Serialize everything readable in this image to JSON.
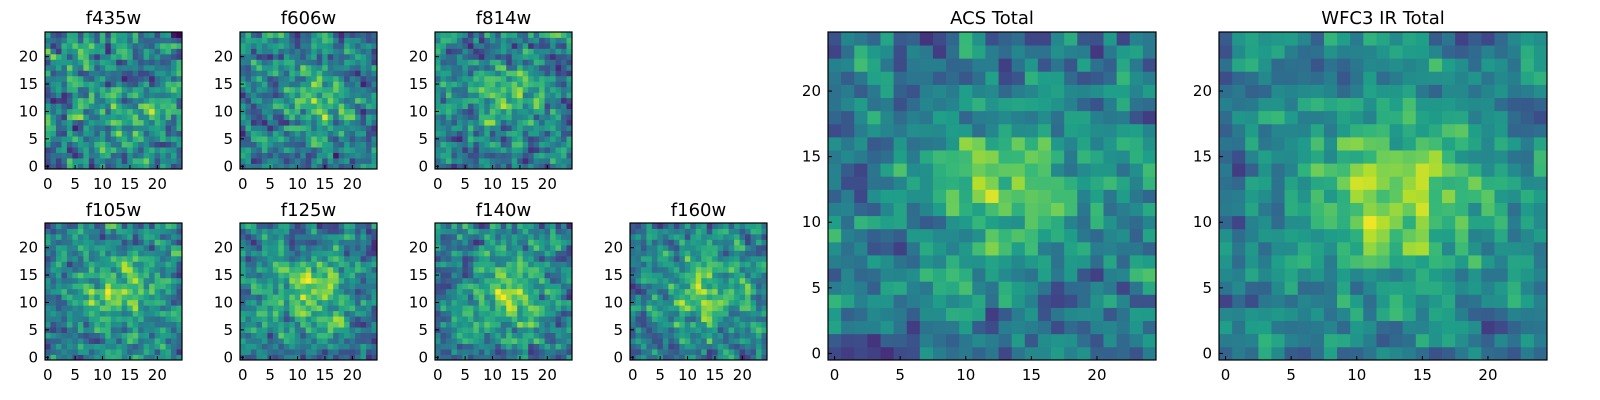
{
  "chart_data": [
    {
      "type": "heatmap",
      "title": "f435w",
      "grid_size": 25,
      "x_ticks": [
        "0",
        "5",
        "10",
        "15",
        "20"
      ],
      "y_ticks": [
        "0",
        "5",
        "10",
        "15",
        "20"
      ],
      "xlim": [
        0,
        24
      ],
      "ylim": [
        0,
        24
      ],
      "colormap": "viridis",
      "seed": 11,
      "blob": {
        "x": 15,
        "y": 8,
        "sigma": 6,
        "amp": 0.15
      },
      "noise": 0.55
    },
    {
      "type": "heatmap",
      "title": "f606w",
      "grid_size": 25,
      "x_ticks": [
        "0",
        "5",
        "10",
        "15",
        "20"
      ],
      "y_ticks": [
        "0",
        "5",
        "10",
        "15",
        "20"
      ],
      "xlim": [
        0,
        24
      ],
      "ylim": [
        0,
        24
      ],
      "colormap": "viridis",
      "seed": 23,
      "blob": {
        "x": 13,
        "y": 12,
        "sigma": 4,
        "amp": 0.3
      },
      "noise": 0.5
    },
    {
      "type": "heatmap",
      "title": "f814w",
      "grid_size": 25,
      "x_ticks": [
        "0",
        "5",
        "10",
        "15",
        "20"
      ],
      "y_ticks": [
        "0",
        "5",
        "10",
        "15",
        "20"
      ],
      "xlim": [
        0,
        24
      ],
      "ylim": [
        0,
        24
      ],
      "colormap": "viridis",
      "seed": 37,
      "blob": {
        "x": 13,
        "y": 13,
        "sigma": 4,
        "amp": 0.3
      },
      "noise": 0.5
    },
    {
      "type": "heatmap",
      "title": "f105w",
      "grid_size": 25,
      "x_ticks": [
        "0",
        "5",
        "10",
        "15",
        "20"
      ],
      "y_ticks": [
        "0",
        "5",
        "10",
        "15",
        "20"
      ],
      "xlim": [
        0,
        24
      ],
      "ylim": [
        0,
        24
      ],
      "colormap": "viridis",
      "seed": 41,
      "blob": {
        "x": 13,
        "y": 12,
        "sigma": 5,
        "amp": 0.35
      },
      "noise": 0.45
    },
    {
      "type": "heatmap",
      "title": "f125w",
      "grid_size": 25,
      "x_ticks": [
        "0",
        "5",
        "10",
        "15",
        "20"
      ],
      "y_ticks": [
        "0",
        "5",
        "10",
        "15",
        "20"
      ],
      "xlim": [
        0,
        24
      ],
      "ylim": [
        0,
        24
      ],
      "colormap": "viridis",
      "seed": 53,
      "blob": {
        "x": 13,
        "y": 12,
        "sigma": 5,
        "amp": 0.35
      },
      "noise": 0.45
    },
    {
      "type": "heatmap",
      "title": "f140w",
      "grid_size": 25,
      "x_ticks": [
        "0",
        "5",
        "10",
        "15",
        "20"
      ],
      "y_ticks": [
        "0",
        "5",
        "10",
        "15",
        "20"
      ],
      "xlim": [
        0,
        24
      ],
      "ylim": [
        0,
        24
      ],
      "colormap": "viridis",
      "seed": 67,
      "blob": {
        "x": 13,
        "y": 12,
        "sigma": 5,
        "amp": 0.35
      },
      "noise": 0.45
    },
    {
      "type": "heatmap",
      "title": "f160w",
      "grid_size": 25,
      "x_ticks": [
        "0",
        "5",
        "10",
        "15",
        "20"
      ],
      "y_ticks": [
        "0",
        "5",
        "10",
        "15",
        "20"
      ],
      "xlim": [
        0,
        24
      ],
      "ylim": [
        0,
        24
      ],
      "colormap": "viridis",
      "seed": 79,
      "blob": {
        "x": 13,
        "y": 12,
        "sigma": 5,
        "amp": 0.35
      },
      "noise": 0.45
    },
    {
      "type": "heatmap",
      "title": "ACS Total",
      "grid_size": 25,
      "x_ticks": [
        "0",
        "5",
        "10",
        "15",
        "20"
      ],
      "y_ticks": [
        "0",
        "5",
        "10",
        "15",
        "20"
      ],
      "xlim": [
        0,
        24
      ],
      "ylim": [
        0,
        24
      ],
      "colormap": "viridis",
      "seed": 97,
      "blob": {
        "x": 13,
        "y": 13,
        "sigma": 3.5,
        "amp": 0.35
      },
      "noise": 0.4
    },
    {
      "type": "heatmap",
      "title": "WFC3 IR Total",
      "grid_size": 25,
      "x_ticks": [
        "0",
        "5",
        "10",
        "15",
        "20"
      ],
      "y_ticks": [
        "0",
        "5",
        "10",
        "15",
        "20"
      ],
      "xlim": [
        0,
        24
      ],
      "ylim": [
        0,
        24
      ],
      "colormap": "viridis",
      "seed": 113,
      "blob": {
        "x": 13,
        "y": 12,
        "sigma": 5,
        "amp": 0.4
      },
      "noise": 0.35
    }
  ]
}
